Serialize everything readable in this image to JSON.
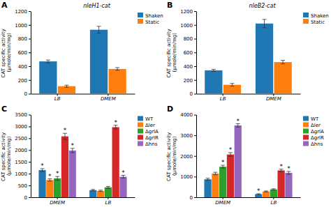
{
  "chart_data": [
    {
      "type": "bar",
      "title": "nleH1-cat",
      "y_label": "CAT specific activity\n(μmole/min/mg)",
      "categories": [
        "LB",
        "DMEM"
      ],
      "series": [
        {
          "name": "Shaken",
          "values": [
            470,
            930
          ],
          "errors": [
            20,
            50
          ]
        },
        {
          "name": "Static",
          "values": [
            110,
            360
          ],
          "errors": [
            15,
            20
          ]
        }
      ],
      "ylim": [
        0,
        1200
      ],
      "yticks": [
        0,
        200,
        400,
        600,
        800,
        1000,
        1200
      ],
      "legend": "upper right",
      "annotations": [
        {
          "text": "A"
        }
      ]
    },
    {
      "type": "bar",
      "title": "nleB2-cat",
      "y_label": "CAT specific activity\n(μmole/min/mg)",
      "categories": [
        "LB",
        "DMEM"
      ],
      "series": [
        {
          "name": "Shaken",
          "values": [
            340,
            1020
          ],
          "errors": [
            15,
            60
          ]
        },
        {
          "name": "Static",
          "values": [
            130,
            460
          ],
          "errors": [
            20,
            25
          ]
        }
      ],
      "ylim": [
        0,
        1200
      ],
      "yticks": [
        0,
        200,
        400,
        600,
        800,
        1000,
        1200
      ],
      "legend": "upper right",
      "annotations": [
        {
          "text": "B"
        }
      ]
    },
    {
      "type": "bar",
      "y_label": "CAT specific activity\n(μmole/min/mg)",
      "categories": [
        "DMEM",
        "LB"
      ],
      "series": [
        {
          "name": "WT",
          "values": [
            1150,
            300
          ],
          "errors": [
            60,
            30
          ]
        },
        {
          "name": "Δler",
          "values": [
            730,
            270
          ],
          "errors": [
            50,
            30
          ]
        },
        {
          "name": "ΔgrlA",
          "values": [
            800,
            420
          ],
          "errors": [
            80,
            40
          ]
        },
        {
          "name": "ΔgrlR",
          "values": [
            2580,
            2970
          ],
          "errors": [
            130,
            80
          ]
        },
        {
          "name": "Δhns",
          "values": [
            1980,
            870
          ],
          "errors": [
            90,
            60
          ]
        }
      ],
      "ylim": [
        0,
        3500
      ],
      "yticks": [
        0,
        500,
        1000,
        1500,
        2000,
        2500,
        3000,
        3500
      ],
      "legend": "upper right",
      "annotations": [
        {
          "text": "C"
        },
        {
          "text": "*",
          "series": "ΔgrlR",
          "category": "DMEM"
        },
        {
          "text": "*",
          "series": "Δhns",
          "category": "DMEM"
        },
        {
          "text": "*",
          "series": "WT",
          "category": "DMEM"
        },
        {
          "text": "*",
          "series": "Δler",
          "category": "DMEM"
        },
        {
          "text": "*",
          "series": "ΔgrlA",
          "category": "DMEM"
        },
        {
          "text": "*",
          "series": "ΔgrlR",
          "category": "LB"
        },
        {
          "text": "*",
          "series": "Δhns",
          "category": "LB"
        }
      ]
    },
    {
      "type": "bar",
      "y_label": "CAT specific activity\n(μmole/min/mg)",
      "categories": [
        "DMEM",
        "LB"
      ],
      "series": [
        {
          "name": "WT",
          "values": [
            870,
            150
          ],
          "errors": [
            50,
            20
          ]
        },
        {
          "name": "Δler",
          "values": [
            1150,
            280
          ],
          "errors": [
            60,
            25
          ]
        },
        {
          "name": "ΔgrlA",
          "values": [
            1480,
            380
          ],
          "errors": [
            70,
            30
          ]
        },
        {
          "name": "ΔgrlR",
          "values": [
            2070,
            1300
          ],
          "errors": [
            90,
            60
          ]
        },
        {
          "name": "Δhns",
          "values": [
            3480,
            1180
          ],
          "errors": [
            80,
            70
          ]
        }
      ],
      "ylim": [
        0,
        4000
      ],
      "yticks": [
        0,
        1000,
        2000,
        3000,
        4000
      ],
      "legend": "upper right",
      "annotations": [
        {
          "text": "D"
        },
        {
          "text": "*",
          "series": "ΔgrlA",
          "category": "DMEM"
        },
        {
          "text": "*",
          "series": "ΔgrlR",
          "category": "DMEM"
        },
        {
          "text": "*",
          "series": "Δhns",
          "category": "DMEM"
        },
        {
          "text": "*",
          "series": "ΔgrlR",
          "category": "LB"
        },
        {
          "text": "*",
          "series": "Δhns",
          "category": "LB"
        },
        {
          "text": "*",
          "series": "WT",
          "category": "LB"
        }
      ]
    }
  ]
}
